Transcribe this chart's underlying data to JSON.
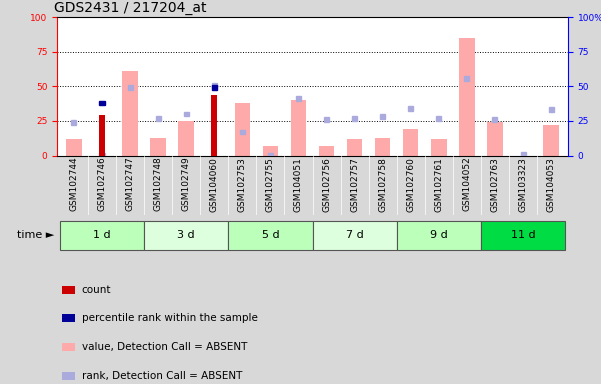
{
  "title": "GDS2431 / 217204_at",
  "samples": [
    "GSM102744",
    "GSM102746",
    "GSM102747",
    "GSM102748",
    "GSM102749",
    "GSM104060",
    "GSM102753",
    "GSM102755",
    "GSM104051",
    "GSM102756",
    "GSM102757",
    "GSM102758",
    "GSM102760",
    "GSM102761",
    "GSM104052",
    "GSM102763",
    "GSM103323",
    "GSM104053"
  ],
  "time_groups": [
    {
      "label": "1 d",
      "start": 0,
      "end": 2,
      "color": "#bbffbb"
    },
    {
      "label": "3 d",
      "start": 3,
      "end": 5,
      "color": "#ddffdd"
    },
    {
      "label": "5 d",
      "start": 6,
      "end": 8,
      "color": "#bbffbb"
    },
    {
      "label": "7 d",
      "start": 9,
      "end": 11,
      "color": "#ddffdd"
    },
    {
      "label": "9 d",
      "start": 12,
      "end": 14,
      "color": "#bbffbb"
    },
    {
      "label": "11 d",
      "start": 15,
      "end": 17,
      "color": "#00dd44"
    }
  ],
  "count": [
    0,
    29,
    0,
    0,
    0,
    44,
    0,
    0,
    0,
    0,
    0,
    0,
    0,
    0,
    0,
    0,
    0,
    0
  ],
  "percentile_rank": [
    0,
    38,
    0,
    0,
    0,
    49,
    0,
    0,
    0,
    0,
    0,
    0,
    0,
    0,
    0,
    0,
    0,
    0
  ],
  "value_absent": [
    12,
    0,
    61,
    13,
    25,
    0,
    38,
    7,
    40,
    7,
    12,
    13,
    19,
    12,
    85,
    24,
    0,
    22
  ],
  "rank_absent": [
    24,
    0,
    49,
    27,
    30,
    51,
    17,
    0,
    41,
    26,
    27,
    28,
    34,
    27,
    56,
    26,
    1,
    33
  ],
  "ylim": [
    0,
    100
  ],
  "yticks": [
    0,
    25,
    50,
    75,
    100
  ],
  "count_color": "#cc0000",
  "percentile_color": "#000099",
  "value_absent_color": "#ffaaaa",
  "rank_absent_color": "#aaaadd",
  "bg_color": "#d8d8d8",
  "label_bg_color": "#c8c8c8",
  "plot_bg": "white",
  "title_fontsize": 10,
  "tick_fontsize": 6.5,
  "time_fontsize": 8,
  "legend_fontsize": 7.5
}
